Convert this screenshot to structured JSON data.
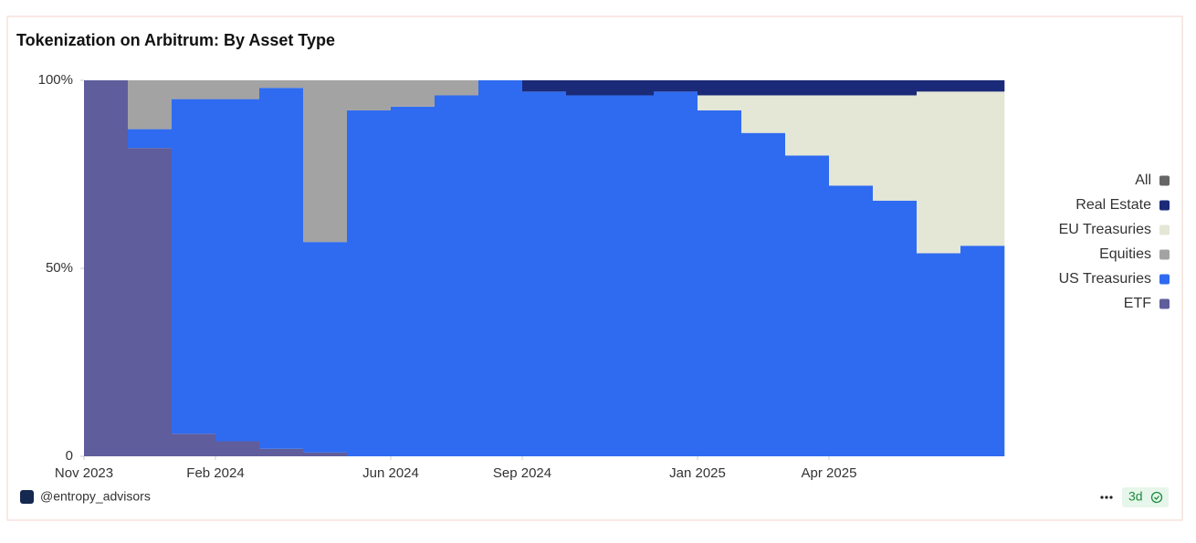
{
  "chart_data": {
    "type": "bar",
    "stacked": true,
    "title": "Tokenization on Arbitrum: By Asset Type",
    "x": [
      "2023-11",
      "2023-12",
      "2024-01",
      "2024-02",
      "2024-03",
      "2024-04",
      "2024-05",
      "2024-06",
      "2024-07",
      "2024-08",
      "2024-09",
      "2024-10",
      "2024-11",
      "2024-12",
      "2025-01",
      "2025-02",
      "2025-03",
      "2025-04",
      "2025-05",
      "2025-06",
      "2025-07"
    ],
    "xticks": [
      {
        "value": "2023-11",
        "label": "Nov 2023"
      },
      {
        "value": "2024-02",
        "label": "Feb 2024"
      },
      {
        "value": "2024-06",
        "label": "Jun 2024"
      },
      {
        "value": "2024-09",
        "label": "Sep 2024"
      },
      {
        "value": "2025-01",
        "label": "Jan 2025"
      },
      {
        "value": "2025-04",
        "label": "Apr 2025"
      }
    ],
    "ylim": [
      0,
      100
    ],
    "yticks": [
      0,
      {
        "value": 50,
        "label": "50%"
      },
      {
        "value": 100,
        "label": "100%"
      }
    ],
    "legend": "right",
    "series": [
      {
        "name": "ETF",
        "color": "#5f5d9c",
        "values": [
          100,
          82,
          6,
          4,
          2,
          1,
          0,
          0,
          0,
          0,
          0,
          0,
          0,
          0,
          0,
          0,
          0,
          0,
          0,
          0,
          0
        ]
      },
      {
        "name": "US Treasuries",
        "color": "#2f6bf0",
        "values": [
          0,
          5,
          89,
          91,
          96,
          56,
          92,
          93,
          96,
          100,
          97,
          96,
          96,
          97,
          92,
          86,
          80,
          72,
          68,
          54,
          56
        ]
      },
      {
        "name": "Equities",
        "color": "#a3a3a3",
        "values": [
          0,
          13,
          5,
          5,
          2,
          43,
          8,
          7,
          4,
          0,
          0,
          0,
          0,
          0,
          0,
          0,
          0,
          0,
          0,
          0,
          0
        ]
      },
      {
        "name": "EU Treasuries",
        "color": "#e4e6d6",
        "values": [
          0,
          0,
          0,
          0,
          0,
          0,
          0,
          0,
          0,
          0,
          0,
          0,
          0,
          0,
          4,
          10,
          16,
          24,
          28,
          43,
          41
        ]
      },
      {
        "name": "Real Estate",
        "color": "#1a2a78",
        "values": [
          0,
          0,
          0,
          0,
          0,
          0,
          0,
          0,
          0,
          0,
          3,
          4,
          4,
          3,
          4,
          4,
          4,
          4,
          4,
          3,
          3
        ]
      },
      {
        "name": "All",
        "color": "#666666",
        "values": [
          0,
          0,
          0,
          0,
          0,
          0,
          0,
          0,
          0,
          0,
          0,
          0,
          0,
          0,
          0,
          0,
          0,
          0,
          0,
          0,
          0
        ]
      }
    ]
  },
  "footer": {
    "source": "@entropy_advisors",
    "age": "3d"
  }
}
